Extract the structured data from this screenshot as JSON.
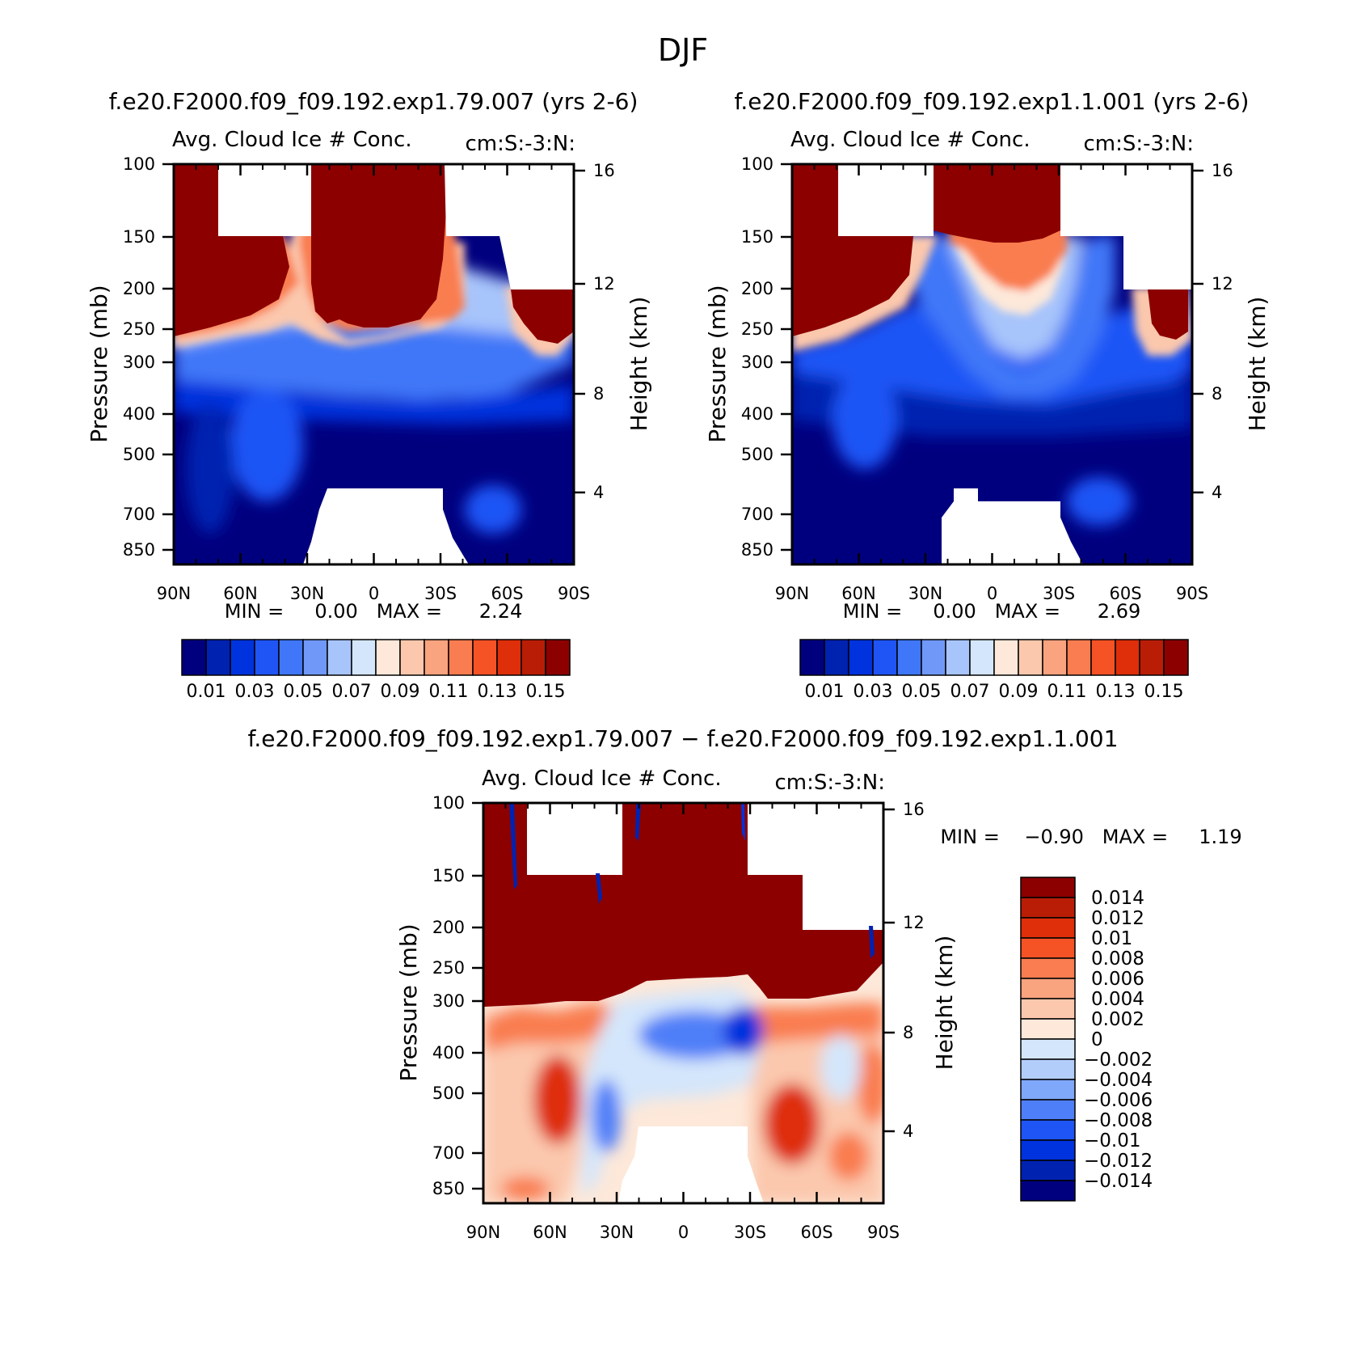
{
  "page_title": "DJF",
  "colors": {
    "seq_scale": [
      "#00007f",
      "#0022b0",
      "#0033dd",
      "#1f55f5",
      "#3f77f8",
      "#6f98f8",
      "#a7c4fb",
      "#d4e6fb",
      "#fde8d9",
      "#fbc8ad",
      "#f9a37f",
      "#f97d50",
      "#f55225",
      "#de2e0a",
      "#b91d06",
      "#8c0000"
    ],
    "div_scale": [
      "#00007f",
      "#0022b0",
      "#0033dd",
      "#1f55f5",
      "#4f7ff8",
      "#80a8fa",
      "#b3cdfb",
      "#d4e6fb",
      "#fde8d9",
      "#fbc8ad",
      "#f9a37f",
      "#f97d50",
      "#f55225",
      "#de2e0a",
      "#b91d06",
      "#8c0000"
    ]
  },
  "chart_data": [
    {
      "type": "heatmap",
      "panel": "top-left",
      "run_title": "f.e20.F2000.f09_f09.192.exp1.79.007 (yrs 2-6)",
      "title": "Avg. Cloud Ice # Conc.",
      "units": "cm:S:-3:N:",
      "xlabel": "",
      "ylabel": "Pressure (mb)",
      "ylabel_right": "Height (km)",
      "x_ticks": [
        "90N",
        "60N",
        "30N",
        "0",
        "30S",
        "60S",
        "90S"
      ],
      "y_ticks": [
        "100",
        "150",
        "200",
        "250",
        "300",
        "400",
        "500",
        "700",
        "850"
      ],
      "y_right_ticks": [
        "16",
        "12",
        "8",
        "4"
      ],
      "stats_label": "MIN =     0.00   MAX =      2.24",
      "min": 0.0,
      "max": 2.24,
      "colorbar_labels": [
        "0.01",
        "0.03",
        "0.05",
        "0.07",
        "0.09",
        "0.11",
        "0.13",
        "0.15"
      ],
      "levels": [
        0.01,
        0.02,
        0.03,
        0.04,
        0.05,
        0.06,
        0.07,
        0.08,
        0.09,
        0.1,
        0.11,
        0.12,
        0.13,
        0.14,
        0.15
      ]
    },
    {
      "type": "heatmap",
      "panel": "top-right",
      "run_title": "f.e20.F2000.f09_f09.192.exp1.1.001 (yrs 2-6)",
      "title": "Avg. Cloud Ice # Conc.",
      "units": "cm:S:-3:N:",
      "xlabel": "",
      "ylabel": "Pressure (mb)",
      "ylabel_right": "Height (km)",
      "x_ticks": [
        "90N",
        "60N",
        "30N",
        "0",
        "30S",
        "60S",
        "90S"
      ],
      "y_ticks": [
        "100",
        "150",
        "200",
        "250",
        "300",
        "400",
        "500",
        "700",
        "850"
      ],
      "y_right_ticks": [
        "16",
        "12",
        "8",
        "4"
      ],
      "stats_label": "MIN =     0.00   MAX =      2.69",
      "min": 0.0,
      "max": 2.69,
      "colorbar_labels": [
        "0.01",
        "0.03",
        "0.05",
        "0.07",
        "0.09",
        "0.11",
        "0.13",
        "0.15"
      ],
      "levels": [
        0.01,
        0.02,
        0.03,
        0.04,
        0.05,
        0.06,
        0.07,
        0.08,
        0.09,
        0.1,
        0.11,
        0.12,
        0.13,
        0.14,
        0.15
      ]
    },
    {
      "type": "heatmap",
      "panel": "bottom-difference",
      "run_title": "f.e20.F2000.f09_f09.192.exp1.79.007 − f.e20.F2000.f09_f09.192.exp1.1.001",
      "title": "Avg. Cloud Ice # Conc.",
      "units": "cm:S:-3:N:",
      "xlabel": "",
      "ylabel": "Pressure (mb)",
      "ylabel_right": "Height (km)",
      "x_ticks": [
        "90N",
        "60N",
        "30N",
        "0",
        "30S",
        "60S",
        "90S"
      ],
      "y_ticks": [
        "100",
        "150",
        "200",
        "250",
        "300",
        "400",
        "500",
        "700",
        "850"
      ],
      "y_right_ticks": [
        "16",
        "12",
        "8",
        "4"
      ],
      "stats_label": "MIN =    −0.90   MAX =     1.19",
      "min": -0.9,
      "max": 1.19,
      "colorbar_labels": [
        "0.014",
        "0.012",
        "0.01",
        "0.008",
        "0.006",
        "0.004",
        "0.002",
        "0",
        "−0.002",
        "−0.004",
        "−0.006",
        "−0.008",
        "−0.01",
        "−0.012",
        "−0.014"
      ],
      "levels": [
        -0.014,
        -0.012,
        -0.01,
        -0.008,
        -0.006,
        -0.004,
        -0.002,
        0,
        0.002,
        0.004,
        0.006,
        0.008,
        0.01,
        0.012,
        0.014
      ]
    }
  ]
}
